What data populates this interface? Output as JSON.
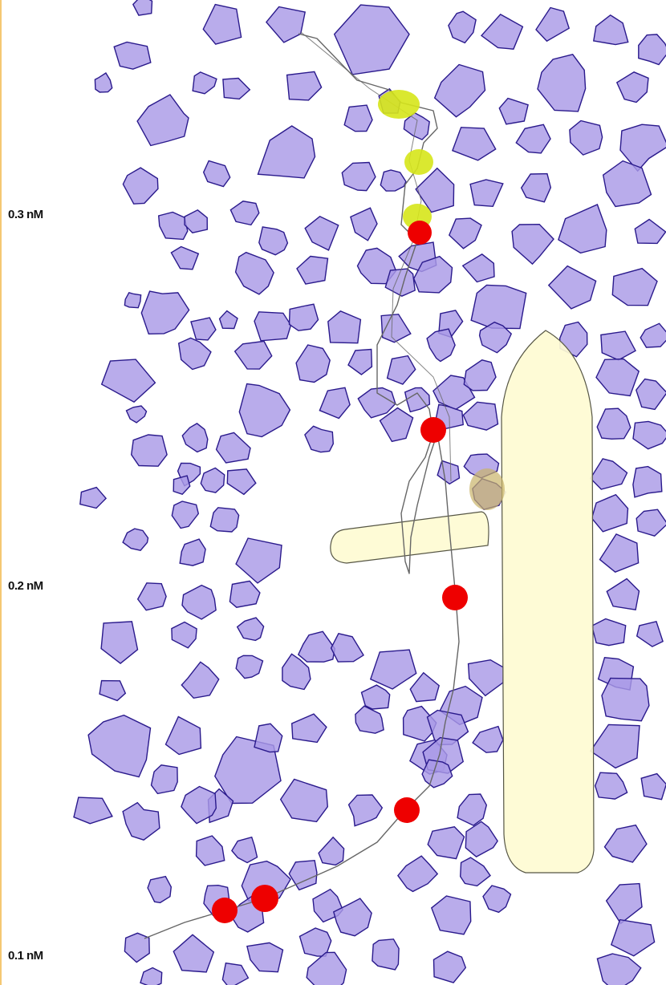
{
  "scale": {
    "labels": [
      "0.3 nM",
      "0.2 nM",
      "0.1 nM"
    ]
  },
  "colors": {
    "cell_fill": "#a99ae6",
    "cell_stroke": "#2a1a8c",
    "channel_fill": "#fefbd2",
    "channel_stroke": "#555544",
    "track_stroke": "#666666",
    "event_red": "#ee0000",
    "event_yellow": "#d6e61a",
    "left_edge": "#f5c873"
  },
  "legend_markers": {
    "red_events": 7,
    "yellow_events": 3
  }
}
